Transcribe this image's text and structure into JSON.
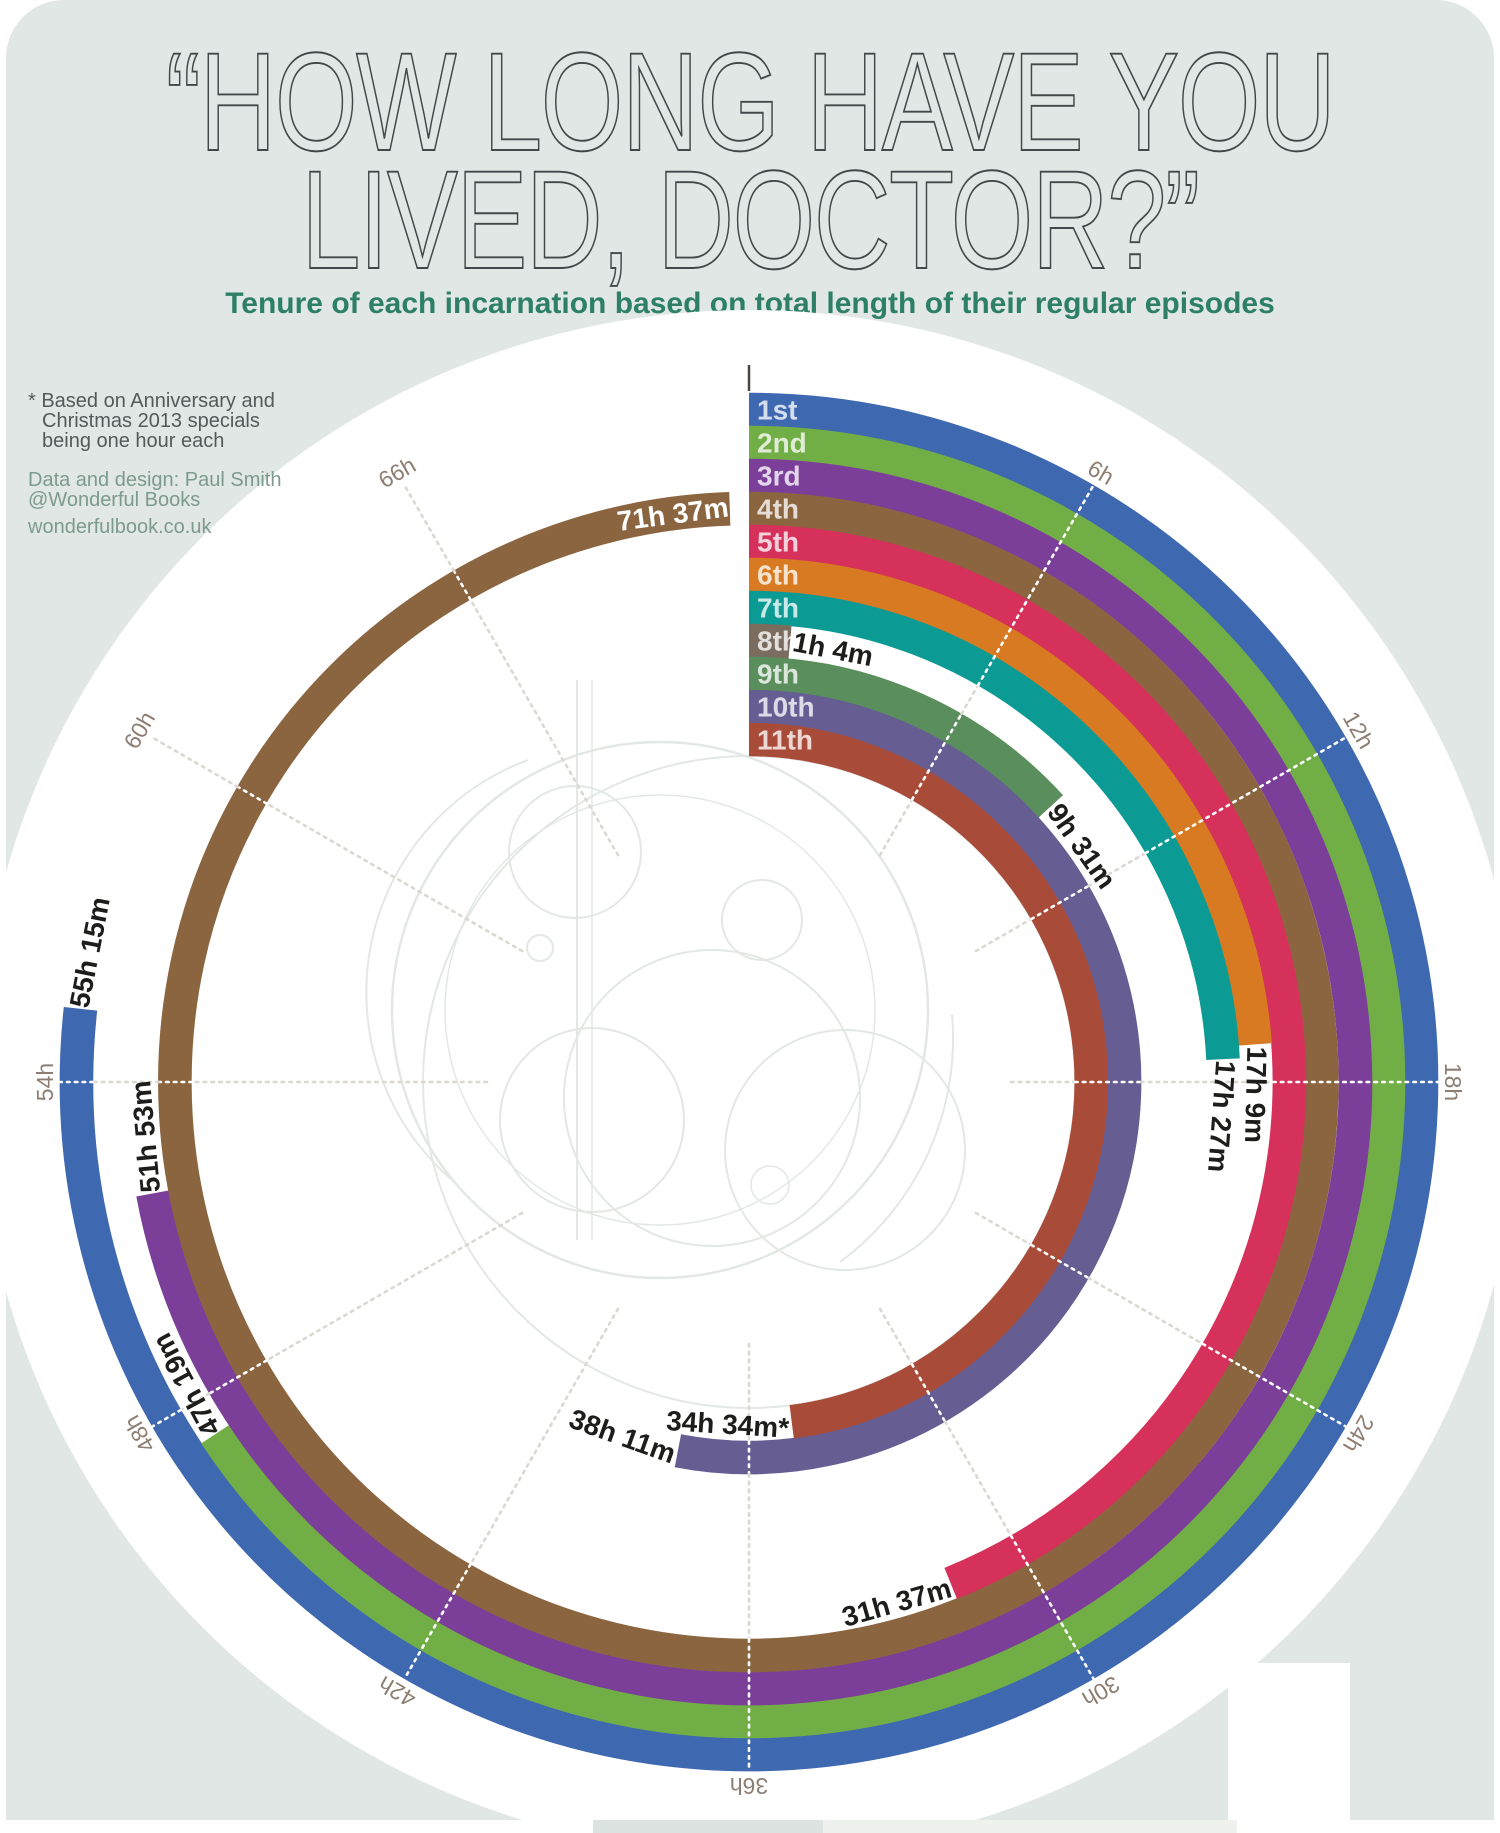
{
  "title": {
    "line1": "“HOW LONG HAVE YOU",
    "line2": "LIVED, DOCTOR?”"
  },
  "subtitle": "Tenure of each incarnation based on total length of their regular episodes",
  "note_lines": [
    "* Based on Anniversary and",
    "Christmas 2013 specials",
    "being one hour each"
  ],
  "credit_lines": [
    "Data and design: Paul Smith",
    "@Wonderful Books"
  ],
  "credit_url": "wonderfulbook.co.uk",
  "colors": {
    "panel_background": "#e1e7e4",
    "circle_background": "#ffffff",
    "title": "#43474a",
    "subtitle": "#2d7f68",
    "note": "#54595a",
    "credit": "#7d9a8e",
    "grid_label": "#8d7d72",
    "grid_dot_on_band": "#ffffff",
    "grid_dot_on_white": "#dbd8d2",
    "value_label": "#1d1d1b",
    "ring_number_label": "rgba(255,255,255,0.78)",
    "start_tick": "#4e463e",
    "artwork_stroke": "#e3e8e4"
  },
  "chart_data": {
    "type": "bar",
    "subtype": "radial-bar-spiral",
    "title": "“HOW LONG HAVE YOU LIVED, DOCTOR?”",
    "subtitle": "Tenure of each incarnation based on total length of their regular episodes",
    "angle_scale": {
      "hours_per_revolution": 72,
      "degrees_per_hour": 5
    },
    "grid_ticks_hours": [
      6,
      12,
      18,
      24,
      30,
      36,
      42,
      48,
      54,
      60,
      66
    ],
    "grid_tick_suffix": "h",
    "grid_on": true,
    "legend_position": "ring-start-labels",
    "note": "* Based on Anniversary and Christmas 2013 specials being one hour each",
    "series": [
      {
        "label": "1st",
        "duration": "55h 15m",
        "hours": 55.25,
        "color": "#3e68b0"
      },
      {
        "label": "2nd",
        "duration": "47h 19m",
        "hours": 47.3167,
        "color": "#72ae46"
      },
      {
        "label": "3rd",
        "duration": "51h 53m",
        "hours": 51.8833,
        "color": "#7c3f99"
      },
      {
        "label": "4th",
        "duration": "71h 37m",
        "hours": 71.6167,
        "color": "#8b6540",
        "value_inside": true
      },
      {
        "label": "5th",
        "duration": "31h 37m",
        "hours": 31.6167,
        "color": "#d5315a"
      },
      {
        "label": "6th",
        "duration": "17h 9m",
        "hours": 17.15,
        "color": "#d87a21"
      },
      {
        "label": "7th",
        "duration": "17h 27m",
        "hours": 17.45,
        "color": "#0c9a94"
      },
      {
        "label": "8th",
        "duration": "1h 4m",
        "hours": 1.0667,
        "color": "#7a6c5f"
      },
      {
        "label": "9th",
        "duration": "9h 31m",
        "hours": 9.5167,
        "color": "#5a8e5c"
      },
      {
        "label": "10th",
        "duration": "38h 11m",
        "hours": 38.1833,
        "color": "#665e93"
      },
      {
        "label": "11th",
        "duration": "34h 34m*",
        "hours": 34.5667,
        "color": "#a84b38"
      }
    ]
  }
}
